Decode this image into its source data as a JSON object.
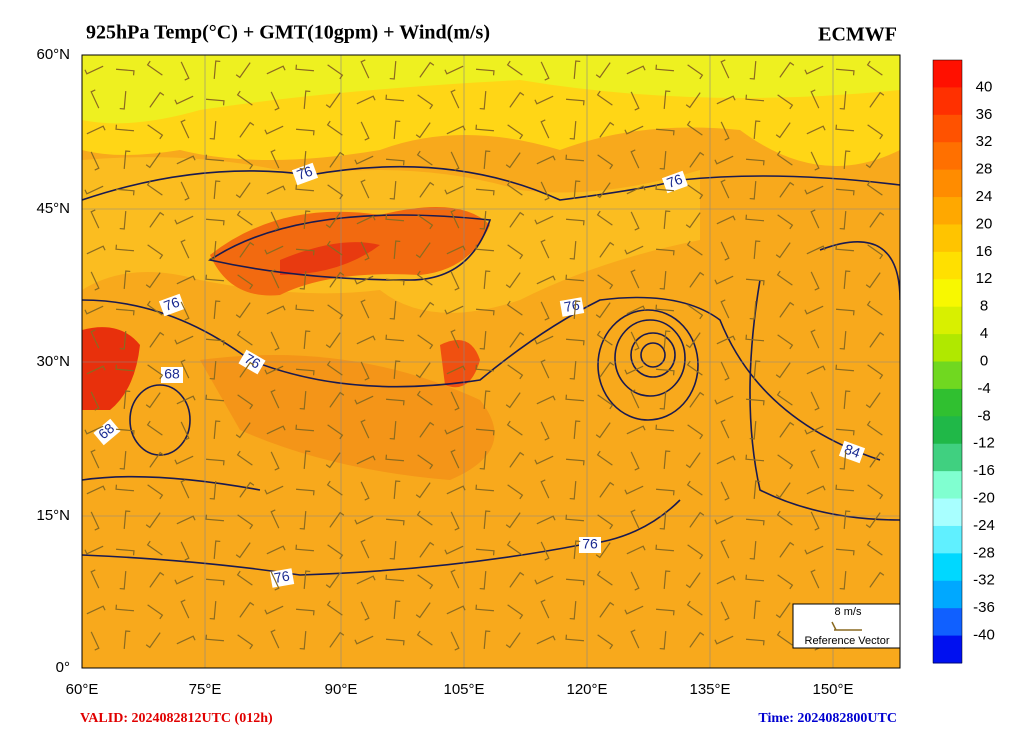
{
  "header": {
    "title": "925hPa Temp(°C) + GMT(10gpm) + Wind(m/s)",
    "source": "ECMWF"
  },
  "map": {
    "lat_labels": [
      "60°N",
      "45°N",
      "30°N",
      "15°N",
      "0°"
    ],
    "lon_labels": [
      "60°E",
      "75°E",
      "90°E",
      "105°E",
      "120°E",
      "135°E",
      "150°E"
    ],
    "contour_labels": [
      "76",
      "76",
      "76",
      "76",
      "76",
      "68",
      "68",
      "84",
      "76",
      "76"
    ],
    "reference_vector": {
      "speed": "8 m/s",
      "label": "Reference Vector"
    }
  },
  "colorbar": {
    "labels": [
      "40",
      "36",
      "32",
      "28",
      "24",
      "20",
      "16",
      "12",
      "8",
      "4",
      "0",
      "-4",
      "-8",
      "-12",
      "-16",
      "-20",
      "-24",
      "-28",
      "-32",
      "-36",
      "-40"
    ],
    "colors": [
      "#ff1000",
      "#ff3000",
      "#ff5200",
      "#ff7000",
      "#ff8c00",
      "#ffa800",
      "#ffc400",
      "#ffe000",
      "#f8f800",
      "#d8f000",
      "#b0e800",
      "#70d820",
      "#30c030",
      "#20b848",
      "#40d080",
      "#80ffd0",
      "#a8ffff",
      "#60f0ff",
      "#00d8ff",
      "#00a8ff",
      "#1060ff",
      "#0010f0"
    ]
  },
  "footer": {
    "valid": "VALID: 2024082812UTC (012h)",
    "time": "Time: 2024082800UTC"
  }
}
